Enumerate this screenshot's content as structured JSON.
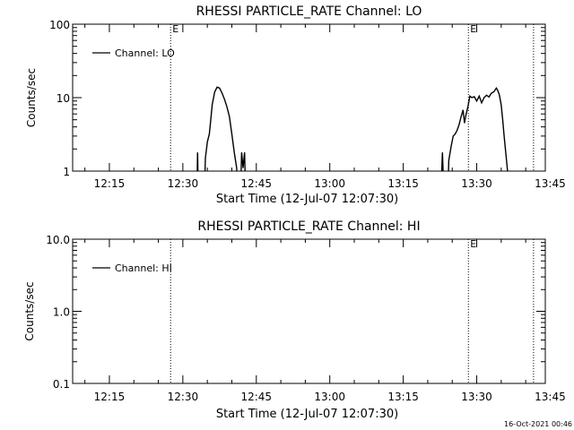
{
  "colors": {
    "background": "#ffffff",
    "foreground": "#000000"
  },
  "timestamp": "16-Oct-2021 00:46",
  "chart_data": [
    {
      "type": "line",
      "title": "RHESSI PARTICLE_RATE Channel: LO",
      "xlabel": "Start Time (12-Jul-07 12:07:30)",
      "ylabel": "Counts/sec",
      "yscale": "log",
      "xlim": [
        7.5,
        104
      ],
      "ylim": [
        1,
        100
      ],
      "x_unit": "minutes after 12:00",
      "xticks": [
        15,
        30,
        45,
        60,
        75,
        90,
        105
      ],
      "xticklabels": [
        "12:15",
        "12:30",
        "12:45",
        "13:00",
        "13:15",
        "13:30",
        "13:45"
      ],
      "yticks": [
        1,
        10,
        100
      ],
      "yticklabels": [
        "1",
        "10",
        "100"
      ],
      "legend": {
        "position": "top-left",
        "entries": [
          "Channel: LO"
        ]
      },
      "markers": [
        {
          "x": 27.5,
          "label": "E"
        },
        {
          "x": 88.3,
          "label": "E"
        },
        {
          "x": 101.6,
          "label": ""
        }
      ],
      "series": [
        {
          "name": "Channel: LO",
          "segments": [
            [
              [
                32.8,
                0.3
              ],
              [
                33.0,
                1.8
              ],
              [
                33.2,
                0.3
              ]
            ],
            [
              [
                34.3,
                0.3
              ],
              [
                34.6,
                1.5
              ],
              [
                35.0,
                2.5
              ],
              [
                35.4,
                3.2
              ],
              [
                35.7,
                5.0
              ],
              [
                36.0,
                8.0
              ],
              [
                36.5,
                12.0
              ],
              [
                37.0,
                13.9
              ],
              [
                37.5,
                13.5
              ],
              [
                38.0,
                11.5
              ],
              [
                38.5,
                9.5
              ],
              [
                39.0,
                7.5
              ],
              [
                39.5,
                5.5
              ],
              [
                40.0,
                3.2
              ],
              [
                40.5,
                1.8
              ],
              [
                41.0,
                1.1
              ],
              [
                41.3,
                0.3
              ]
            ],
            [
              [
                41.7,
                0.3
              ],
              [
                42.0,
                1.8
              ],
              [
                42.3,
                1.1
              ],
              [
                42.6,
                1.8
              ],
              [
                42.9,
                0.3
              ]
            ],
            [
              [
                82.6,
                0.3
              ],
              [
                83.0,
                1.8
              ],
              [
                83.4,
                0.3
              ]
            ],
            [
              [
                84.0,
                0.3
              ],
              [
                84.3,
                1.4
              ],
              [
                84.8,
                2.2
              ],
              [
                85.2,
                3.0
              ],
              [
                85.6,
                3.2
              ],
              [
                86.0,
                3.6
              ],
              [
                86.4,
                4.3
              ],
              [
                86.8,
                5.5
              ],
              [
                87.2,
                6.8
              ],
              [
                87.5,
                4.5
              ],
              [
                87.8,
                5.8
              ],
              [
                88.2,
                7.5
              ],
              [
                88.6,
                10.5
              ],
              [
                89.0,
                10.0
              ],
              [
                89.5,
                10.3
              ],
              [
                90.0,
                9.0
              ],
              [
                90.5,
                10.5
              ],
              [
                91.0,
                8.5
              ],
              [
                91.5,
                10.0
              ],
              [
                92.0,
                10.8
              ],
              [
                92.5,
                10.2
              ],
              [
                93.0,
                11.5
              ],
              [
                93.5,
                12.0
              ],
              [
                94.0,
                13.5
              ],
              [
                94.3,
                12.5
              ],
              [
                94.6,
                11.0
              ],
              [
                95.0,
                8.0
              ],
              [
                95.3,
                5.0
              ],
              [
                95.6,
                3.0
              ],
              [
                96.0,
                1.6
              ],
              [
                96.3,
                1.0
              ],
              [
                96.6,
                0.3
              ]
            ]
          ]
        }
      ]
    },
    {
      "type": "line",
      "title": "RHESSI PARTICLE_RATE Channel: HI",
      "xlabel": "Start Time (12-Jul-07 12:07:30)",
      "ylabel": "Counts/sec",
      "yscale": "log",
      "xlim": [
        7.5,
        104
      ],
      "ylim": [
        0.1,
        10
      ],
      "x_unit": "minutes after 12:00",
      "xticks": [
        15,
        30,
        45,
        60,
        75,
        90,
        105
      ],
      "xticklabels": [
        "12:15",
        "12:30",
        "12:45",
        "13:00",
        "13:15",
        "13:30",
        "13:45"
      ],
      "yticks": [
        0.1,
        1,
        10
      ],
      "yticklabels": [
        "0.1",
        "1.0",
        "10.0"
      ],
      "legend": {
        "position": "top-left",
        "entries": [
          "Channel: HI"
        ]
      },
      "markers": [
        {
          "x": 27.5,
          "label": ""
        },
        {
          "x": 88.3,
          "label": "E"
        },
        {
          "x": 101.6,
          "label": ""
        }
      ],
      "series": [
        {
          "name": "Channel: HI",
          "segments": []
        }
      ]
    }
  ]
}
